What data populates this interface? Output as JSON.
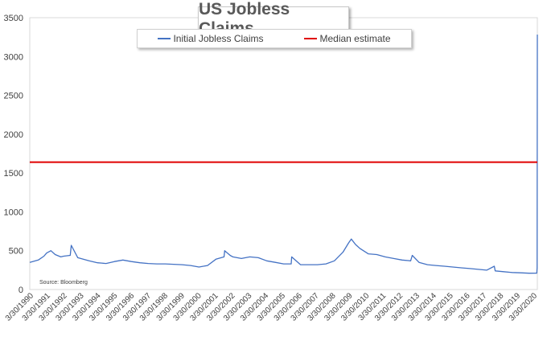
{
  "chart_data": {
    "type": "line",
    "title": "US Jobless Claims",
    "source": "Source: Bloomberg",
    "ylim": [
      0,
      3500
    ],
    "yticks": [
      0,
      500,
      1000,
      1500,
      2000,
      2500,
      3000,
      3500
    ],
    "xlim": [
      "1990-03-30",
      "2020-03-27"
    ],
    "xtick_labels": [
      "3/30/1990",
      "3/30/1991",
      "3/30/1992",
      "3/30/1993",
      "3/30/1994",
      "3/30/1995",
      "3/30/1996",
      "3/30/1997",
      "3/30/1998",
      "3/30/1999",
      "3/30/2000",
      "3/30/2001",
      "3/30/2002",
      "3/30/2003",
      "3/30/2004",
      "3/30/2005",
      "3/30/2006",
      "3/30/2007",
      "3/30/2008",
      "3/30/2009",
      "3/30/2010",
      "3/30/2011",
      "3/30/2012",
      "3/30/2013",
      "3/30/2014",
      "3/30/2015",
      "3/30/2016",
      "3/30/2017",
      "3/30/2018",
      "3/30/2019",
      "3/30/2020"
    ],
    "grid": false,
    "legend": "top",
    "series": [
      {
        "name": "Initial Jobless Claims",
        "color": "#4472c4",
        "x": [
          "1990-03-30",
          "1990-09-30",
          "1991-01-30",
          "1991-03-30",
          "1991-06-30",
          "1991-09-30",
          "1992-01-30",
          "1992-03-30",
          "1992-08-20",
          "1992-09-10",
          "1993-01-30",
          "1993-09-30",
          "1994-03-30",
          "1994-09-30",
          "1995-03-30",
          "1995-09-30",
          "1996-03-30",
          "1996-09-30",
          "1997-03-30",
          "1997-09-30",
          "1998-03-30",
          "1998-09-30",
          "1999-03-30",
          "1999-09-30",
          "2000-03-30",
          "2000-09-30",
          "2001-03-30",
          "2001-09-20",
          "2001-10-05",
          "2002-01-30",
          "2002-03-30",
          "2002-09-30",
          "2003-03-30",
          "2003-09-30",
          "2004-03-30",
          "2004-09-30",
          "2005-03-30",
          "2005-09-10",
          "2005-09-20",
          "2006-03-30",
          "2006-09-30",
          "2007-03-30",
          "2007-09-30",
          "2008-03-30",
          "2008-09-30",
          "2009-01-30",
          "2009-03-30",
          "2009-06-30",
          "2009-09-30",
          "2010-03-30",
          "2010-09-30",
          "2011-03-30",
          "2011-09-30",
          "2012-03-30",
          "2012-09-30",
          "2012-11-05",
          "2013-03-30",
          "2013-09-30",
          "2014-03-30",
          "2014-09-30",
          "2015-03-30",
          "2015-09-30",
          "2016-03-30",
          "2016-09-30",
          "2017-03-30",
          "2017-09-10",
          "2017-09-30",
          "2018-03-30",
          "2018-09-30",
          "2019-03-30",
          "2019-09-30",
          "2020-03-14",
          "2020-03-21",
          "2020-03-27"
        ],
        "values": [
          350,
          380,
          430,
          470,
          500,
          450,
          420,
          430,
          440,
          570,
          410,
          370,
          345,
          335,
          360,
          380,
          360,
          345,
          335,
          330,
          330,
          325,
          320,
          310,
          290,
          310,
          390,
          420,
          500,
          440,
          420,
          400,
          420,
          410,
          370,
          350,
          330,
          330,
          420,
          320,
          320,
          320,
          330,
          370,
          480,
          600,
          650,
          580,
          530,
          460,
          450,
          420,
          400,
          380,
          370,
          440,
          350,
          320,
          310,
          300,
          290,
          280,
          270,
          260,
          250,
          300,
          240,
          230,
          220,
          215,
          210,
          211,
          281,
          3283
        ]
      },
      {
        "name": "Median estimate",
        "color": "#e00000",
        "x": [
          "1990-03-30",
          "2020-03-27"
        ],
        "values": [
          1640,
          1640
        ]
      }
    ]
  }
}
